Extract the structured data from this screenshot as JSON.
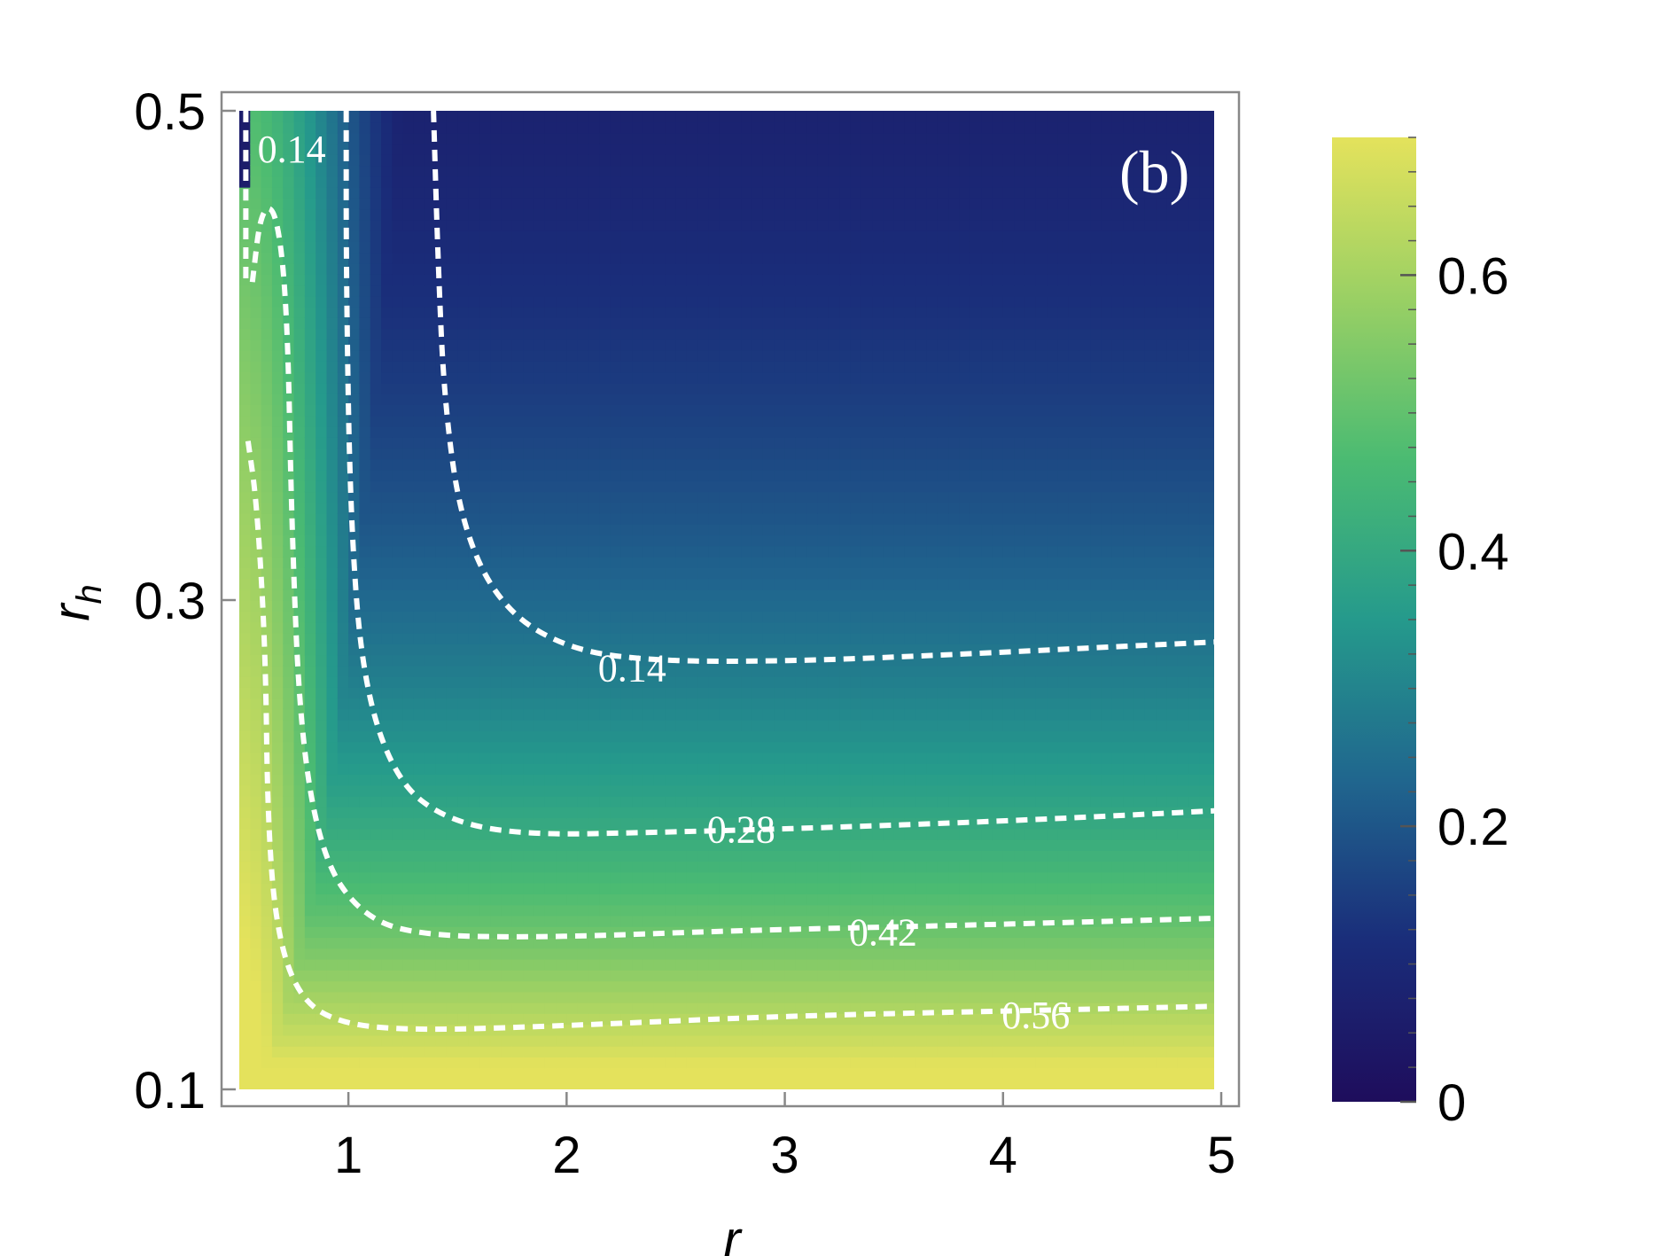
{
  "chart_data": {
    "type": "heatmap",
    "panel_label": "(b)",
    "xlabel": "r",
    "ylabel": "r",
    "ylabel_subscript": "h",
    "xlim": [
      0.5,
      5
    ],
    "ylim": [
      0.1,
      0.5
    ],
    "x_ticks": [
      1,
      2,
      3,
      4,
      5
    ],
    "x_tick_labels": [
      "1",
      "2",
      "3",
      "4",
      "5"
    ],
    "y_ticks": [
      0.1,
      0.3,
      0.5
    ],
    "y_tick_labels": [
      "0.1",
      "0.3",
      "0.5"
    ],
    "colorbar": {
      "range": [
        0,
        0.7
      ],
      "ticks": [
        0,
        0.2,
        0.4,
        0.6
      ],
      "tick_labels": [
        "0",
        "0.2",
        "0.4",
        "0.6"
      ],
      "colormap": [
        "#1e0d5c",
        "#1a2d7a",
        "#20668e",
        "#259a8c",
        "#4bbb72",
        "#9ad064",
        "#e4e25c"
      ]
    },
    "contour_levels": [
      0.14,
      0.28,
      0.42,
      0.56
    ],
    "contours": [
      {
        "level": "0.14",
        "label_at": [
          2.3,
          0.272
        ],
        "points": [
          [
            1.39,
            0.5
          ],
          [
            1.41,
            0.44
          ],
          [
            1.44,
            0.38
          ],
          [
            1.52,
            0.33
          ],
          [
            1.7,
            0.297
          ],
          [
            2.0,
            0.28
          ],
          [
            2.4,
            0.275
          ],
          [
            3.0,
            0.275
          ],
          [
            3.6,
            0.277
          ],
          [
            4.3,
            0.28
          ],
          [
            5.0,
            0.283
          ]
        ]
      },
      {
        "level": "0.28",
        "label_at": [
          2.8,
          0.206
        ],
        "points": [
          [
            0.99,
            0.5
          ],
          [
            0.99,
            0.43
          ],
          [
            1.01,
            0.33
          ],
          [
            1.07,
            0.265
          ],
          [
            1.22,
            0.226
          ],
          [
            1.45,
            0.21
          ],
          [
            1.8,
            0.204
          ],
          [
            2.4,
            0.205
          ],
          [
            3.2,
            0.207
          ],
          [
            4.1,
            0.21
          ],
          [
            5.0,
            0.214
          ]
        ]
      },
      {
        "level": "0.42",
        "label_at": [
          3.45,
          0.164
        ],
        "points": [
          [
            0.56,
            0.43
          ],
          [
            0.6,
            0.46
          ],
          [
            0.67,
            0.46
          ],
          [
            0.72,
            0.42
          ],
          [
            0.74,
            0.33
          ],
          [
            0.78,
            0.245
          ],
          [
            0.88,
            0.195
          ],
          [
            1.05,
            0.172
          ],
          [
            1.3,
            0.163
          ],
          [
            1.9,
            0.162
          ],
          [
            2.8,
            0.165
          ],
          [
            3.8,
            0.167
          ],
          [
            5.0,
            0.17
          ]
        ]
      },
      {
        "level": "0.56",
        "label_at": [
          4.15,
          0.13
        ],
        "points": [
          [
            0.54,
            0.365
          ],
          [
            0.58,
            0.34
          ],
          [
            0.62,
            0.28
          ],
          [
            0.63,
            0.21
          ],
          [
            0.67,
            0.165
          ],
          [
            0.77,
            0.138
          ],
          [
            0.95,
            0.127
          ],
          [
            1.3,
            0.124
          ],
          [
            2.0,
            0.126
          ],
          [
            3.0,
            0.13
          ],
          [
            4.0,
            0.132
          ],
          [
            5.0,
            0.134
          ]
        ]
      },
      {
        "level": "0.14",
        "label_at": [
          0.74,
          0.484
        ],
        "points": [
          [
            0.53,
            0.5
          ],
          [
            0.53,
            0.47
          ],
          [
            0.53,
            0.45
          ],
          [
            0.53,
            0.43
          ]
        ]
      }
    ]
  }
}
